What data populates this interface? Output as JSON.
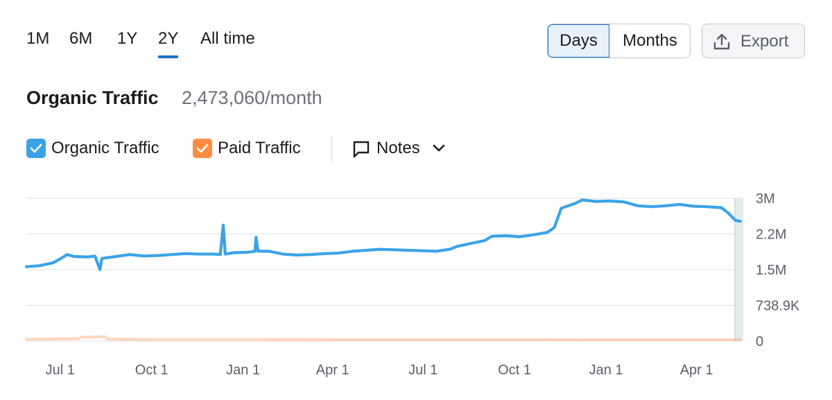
{
  "ranges": [
    {
      "label": "1M",
      "active": false
    },
    {
      "label": "6M",
      "active": false
    },
    {
      "label": "1Y",
      "active": false
    },
    {
      "label": "2Y",
      "active": true
    },
    {
      "label": "All time",
      "active": false
    }
  ],
  "granularity": {
    "selected": "Days",
    "other": "Months"
  },
  "export_label": "Export",
  "summary": {
    "title": "Organic Traffic",
    "value": "2,473,060/month"
  },
  "legend": {
    "organic": {
      "label": "Organic Traffic",
      "checked": true,
      "color": "#3aa3e8"
    },
    "paid": {
      "label": "Paid Traffic",
      "checked": true,
      "color": "#ff8c42"
    },
    "notes_label": "Notes"
  },
  "chart_data": {
    "type": "line",
    "title": "",
    "xlabel": "",
    "ylabel": "",
    "x_ticks": [
      "Jul 1",
      "Oct 1",
      "Jan 1",
      "Apr 1",
      "Jul 1",
      "Oct 1",
      "Jan 1",
      "Apr 1"
    ],
    "y_ticks": [
      "3M",
      "2.2M",
      "1.5M",
      "738.9K",
      "0"
    ],
    "ylim": [
      0,
      2955600
    ],
    "grid": true,
    "series": [
      {
        "name": "Organic Traffic",
        "color": "#3aa3e8",
        "points": [
          [
            "2022-05-28",
            1540000
          ],
          [
            "2022-06-10",
            1560000
          ],
          [
            "2022-06-24",
            1620000
          ],
          [
            "2022-07-01",
            1700000
          ],
          [
            "2022-07-08",
            1790000
          ],
          [
            "2022-07-15",
            1750000
          ],
          [
            "2022-07-29",
            1740000
          ],
          [
            "2022-08-05",
            1760000
          ],
          [
            "2022-08-10",
            1480000
          ],
          [
            "2022-08-12",
            1710000
          ],
          [
            "2022-08-26",
            1750000
          ],
          [
            "2022-09-09",
            1790000
          ],
          [
            "2022-09-23",
            1760000
          ],
          [
            "2022-10-07",
            1770000
          ],
          [
            "2022-10-21",
            1790000
          ],
          [
            "2022-11-04",
            1810000
          ],
          [
            "2022-11-18",
            1800000
          ],
          [
            "2022-12-02",
            1800000
          ],
          [
            "2022-12-09",
            1790000
          ],
          [
            "2022-12-12",
            2400000
          ],
          [
            "2022-12-14",
            1800000
          ],
          [
            "2022-12-23",
            1830000
          ],
          [
            "2023-01-06",
            1840000
          ],
          [
            "2023-01-13",
            1860000
          ],
          [
            "2023-01-14",
            2150000
          ],
          [
            "2023-01-16",
            1860000
          ],
          [
            "2023-01-27",
            1860000
          ],
          [
            "2023-02-10",
            1800000
          ],
          [
            "2023-02-24",
            1780000
          ],
          [
            "2023-03-10",
            1790000
          ],
          [
            "2023-03-24",
            1810000
          ],
          [
            "2023-04-07",
            1820000
          ],
          [
            "2023-04-21",
            1860000
          ],
          [
            "2023-05-05",
            1880000
          ],
          [
            "2023-05-19",
            1900000
          ],
          [
            "2023-06-02",
            1890000
          ],
          [
            "2023-06-16",
            1880000
          ],
          [
            "2023-06-30",
            1870000
          ],
          [
            "2023-07-14",
            1860000
          ],
          [
            "2023-07-28",
            1900000
          ],
          [
            "2023-08-04",
            1960000
          ],
          [
            "2023-08-18",
            2020000
          ],
          [
            "2023-09-01",
            2080000
          ],
          [
            "2023-09-08",
            2170000
          ],
          [
            "2023-09-22",
            2180000
          ],
          [
            "2023-10-06",
            2160000
          ],
          [
            "2023-10-20",
            2200000
          ],
          [
            "2023-11-03",
            2250000
          ],
          [
            "2023-11-10",
            2350000
          ],
          [
            "2023-11-17",
            2750000
          ],
          [
            "2023-12-01",
            2850000
          ],
          [
            "2023-12-08",
            2920000
          ],
          [
            "2023-12-22",
            2890000
          ],
          [
            "2024-01-05",
            2900000
          ],
          [
            "2024-01-19",
            2880000
          ],
          [
            "2024-02-02",
            2800000
          ],
          [
            "2024-02-16",
            2780000
          ],
          [
            "2024-03-01",
            2800000
          ],
          [
            "2024-03-15",
            2830000
          ],
          [
            "2024-03-29",
            2790000
          ],
          [
            "2024-04-12",
            2780000
          ],
          [
            "2024-04-26",
            2760000
          ],
          [
            "2024-05-03",
            2650000
          ],
          [
            "2024-05-10",
            2500000
          ],
          [
            "2024-05-15",
            2480000
          ]
        ]
      },
      {
        "name": "Paid Traffic",
        "color": "#ff8c42",
        "points": [
          [
            "2022-05-28",
            40000
          ],
          [
            "2022-07-01",
            45000
          ],
          [
            "2022-07-20",
            50000
          ],
          [
            "2022-07-22",
            80000
          ],
          [
            "2022-08-15",
            90000
          ],
          [
            "2022-08-18",
            40000
          ],
          [
            "2022-10-01",
            35000
          ],
          [
            "2023-01-01",
            35000
          ],
          [
            "2023-04-01",
            30000
          ],
          [
            "2023-07-01",
            30000
          ],
          [
            "2023-10-01",
            30000
          ],
          [
            "2024-01-01",
            28000
          ],
          [
            "2024-05-15",
            28000
          ]
        ]
      }
    ]
  }
}
